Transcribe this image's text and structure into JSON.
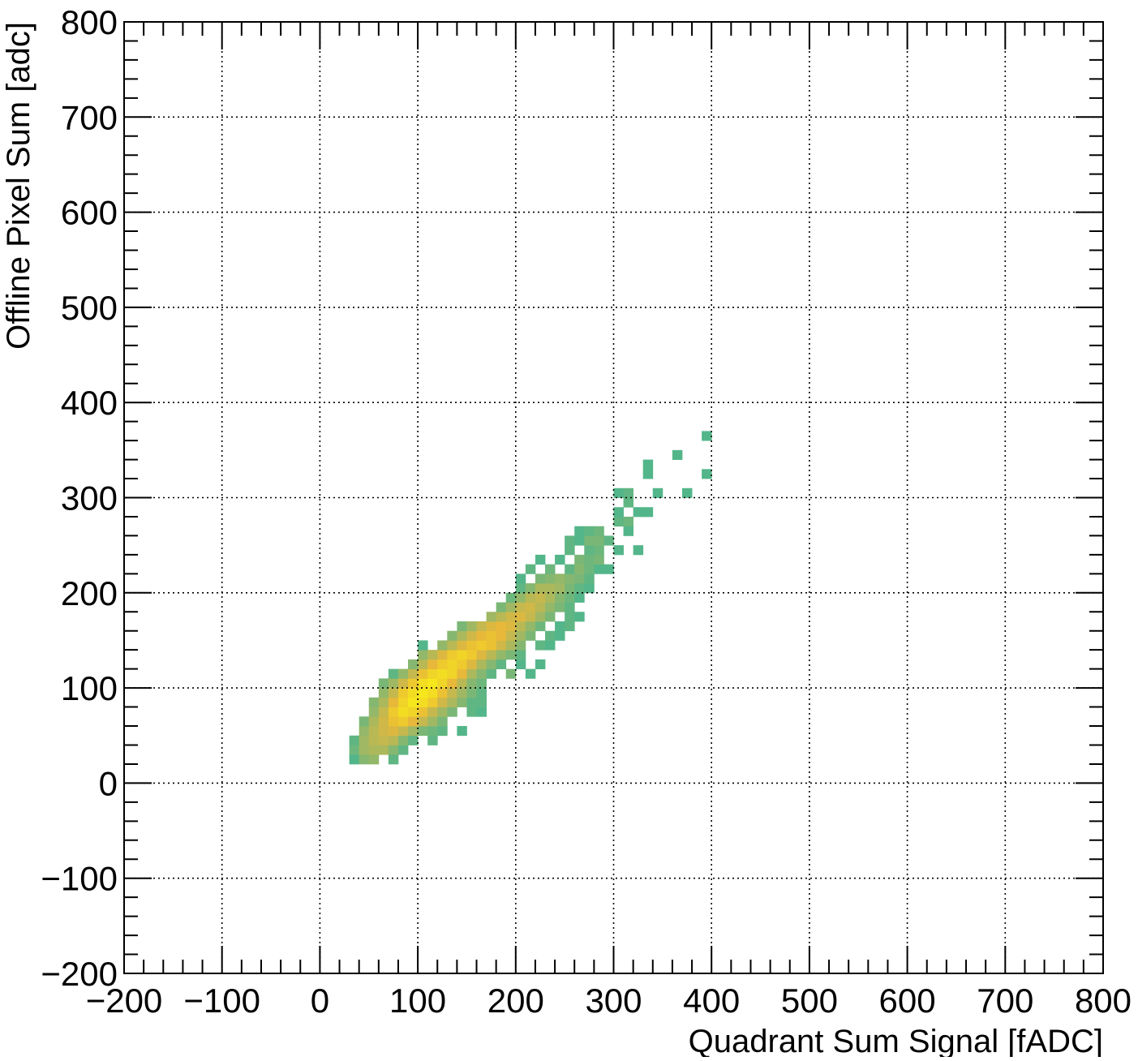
{
  "chart_data": {
    "type": "heatmap",
    "title": "",
    "xlabel": "Quadrant Sum Signal [fADC]",
    "ylabel": "Offline Pixel Sum [adc]",
    "xlim": [
      -200,
      800
    ],
    "ylim": [
      -200,
      800
    ],
    "grid": true,
    "x_tick_labels": [
      "−200",
      "−100",
      "0",
      "100",
      "200",
      "300",
      "400",
      "500",
      "600",
      "700",
      "800"
    ],
    "y_tick_labels": [
      "−200",
      "−100",
      "0",
      "100",
      "200",
      "300",
      "400",
      "500",
      "600",
      "700",
      "800"
    ],
    "colors": {
      "low": "#2db59d",
      "mid": "#a0b863",
      "high": "#e8b83a",
      "peak": "#f6e61c",
      "grid": "#000000"
    },
    "cells": [
      [
        35,
        25,
        0.15
      ],
      [
        45,
        25,
        0.35
      ],
      [
        55,
        25,
        0.4
      ],
      [
        75,
        25,
        0.2
      ],
      [
        35,
        35,
        0.25
      ],
      [
        45,
        35,
        0.45
      ],
      [
        55,
        35,
        0.5
      ],
      [
        65,
        35,
        0.5
      ],
      [
        75,
        35,
        0.35
      ],
      [
        85,
        35,
        0.2
      ],
      [
        35,
        45,
        0.2
      ],
      [
        45,
        45,
        0.45
      ],
      [
        55,
        45,
        0.55
      ],
      [
        65,
        45,
        0.6
      ],
      [
        75,
        45,
        0.55
      ],
      [
        85,
        45,
        0.35
      ],
      [
        95,
        45,
        0.2
      ],
      [
        115,
        45,
        0.2
      ],
      [
        45,
        55,
        0.4
      ],
      [
        55,
        55,
        0.55
      ],
      [
        65,
        55,
        0.65
      ],
      [
        75,
        55,
        0.7
      ],
      [
        85,
        55,
        0.6
      ],
      [
        95,
        55,
        0.45
      ],
      [
        105,
        55,
        0.3
      ],
      [
        115,
        55,
        0.25
      ],
      [
        125,
        55,
        0.2
      ],
      [
        145,
        55,
        0.15
      ],
      [
        45,
        65,
        0.3
      ],
      [
        55,
        65,
        0.5
      ],
      [
        65,
        65,
        0.65
      ],
      [
        75,
        65,
        0.8
      ],
      [
        85,
        65,
        0.85
      ],
      [
        95,
        65,
        0.75
      ],
      [
        105,
        65,
        0.6
      ],
      [
        115,
        65,
        0.45
      ],
      [
        125,
        65,
        0.3
      ],
      [
        55,
        75,
        0.4
      ],
      [
        65,
        75,
        0.6
      ],
      [
        75,
        75,
        0.85
      ],
      [
        85,
        75,
        0.95
      ],
      [
        95,
        75,
        0.9
      ],
      [
        105,
        75,
        0.8
      ],
      [
        115,
        75,
        0.6
      ],
      [
        125,
        75,
        0.45
      ],
      [
        135,
        75,
        0.3
      ],
      [
        155,
        75,
        0.2
      ],
      [
        165,
        75,
        0.15
      ],
      [
        55,
        85,
        0.35
      ],
      [
        65,
        85,
        0.5
      ],
      [
        75,
        85,
        0.75
      ],
      [
        85,
        85,
        0.9
      ],
      [
        95,
        85,
        1.0
      ],
      [
        105,
        85,
        0.95
      ],
      [
        115,
        85,
        0.85
      ],
      [
        125,
        85,
        0.65
      ],
      [
        135,
        85,
        0.5
      ],
      [
        145,
        85,
        0.35
      ],
      [
        155,
        85,
        0.2
      ],
      [
        165,
        85,
        0.2
      ],
      [
        65,
        95,
        0.4
      ],
      [
        75,
        95,
        0.6
      ],
      [
        85,
        95,
        0.85
      ],
      [
        95,
        95,
        0.95
      ],
      [
        105,
        95,
        1.0
      ],
      [
        115,
        95,
        0.95
      ],
      [
        125,
        95,
        0.8
      ],
      [
        135,
        95,
        0.6
      ],
      [
        145,
        95,
        0.45
      ],
      [
        155,
        95,
        0.3
      ],
      [
        165,
        95,
        0.2
      ],
      [
        65,
        105,
        0.3
      ],
      [
        75,
        105,
        0.45
      ],
      [
        85,
        105,
        0.65
      ],
      [
        95,
        105,
        0.85
      ],
      [
        105,
        105,
        0.95
      ],
      [
        115,
        105,
        1.0
      ],
      [
        125,
        105,
        0.9
      ],
      [
        135,
        105,
        0.75
      ],
      [
        145,
        105,
        0.55
      ],
      [
        155,
        105,
        0.35
      ],
      [
        165,
        105,
        0.25
      ],
      [
        75,
        115,
        0.2
      ],
      [
        85,
        115,
        0.4
      ],
      [
        95,
        115,
        0.6
      ],
      [
        105,
        115,
        0.8
      ],
      [
        115,
        115,
        0.9
      ],
      [
        125,
        115,
        0.95
      ],
      [
        135,
        115,
        0.9
      ],
      [
        145,
        115,
        0.75
      ],
      [
        155,
        115,
        0.5
      ],
      [
        165,
        115,
        0.35
      ],
      [
        175,
        115,
        0.2
      ],
      [
        195,
        115,
        0.3
      ],
      [
        215,
        115,
        0.15
      ],
      [
        95,
        125,
        0.35
      ],
      [
        105,
        125,
        0.55
      ],
      [
        115,
        125,
        0.75
      ],
      [
        125,
        125,
        0.85
      ],
      [
        135,
        125,
        0.9
      ],
      [
        145,
        125,
        0.85
      ],
      [
        155,
        125,
        0.7
      ],
      [
        165,
        125,
        0.5
      ],
      [
        175,
        125,
        0.35
      ],
      [
        185,
        125,
        0.2
      ],
      [
        205,
        125,
        0.15
      ],
      [
        225,
        125,
        0.15
      ],
      [
        105,
        135,
        0.4
      ],
      [
        115,
        135,
        0.55
      ],
      [
        125,
        135,
        0.7
      ],
      [
        135,
        135,
        0.85
      ],
      [
        145,
        135,
        0.9
      ],
      [
        155,
        135,
        0.85
      ],
      [
        165,
        135,
        0.7
      ],
      [
        175,
        135,
        0.55
      ],
      [
        185,
        135,
        0.4
      ],
      [
        195,
        135,
        0.3
      ],
      [
        205,
        135,
        0.2
      ],
      [
        125,
        145,
        0.4
      ],
      [
        135,
        145,
        0.55
      ],
      [
        145,
        145,
        0.7
      ],
      [
        155,
        145,
        0.8
      ],
      [
        165,
        145,
        0.85
      ],
      [
        175,
        145,
        0.8
      ],
      [
        185,
        145,
        0.65
      ],
      [
        195,
        145,
        0.5
      ],
      [
        205,
        145,
        0.35
      ],
      [
        225,
        145,
        0.2
      ],
      [
        235,
        145,
        0.15
      ],
      [
        105,
        145,
        0.15
      ],
      [
        135,
        155,
        0.35
      ],
      [
        145,
        155,
        0.5
      ],
      [
        155,
        155,
        0.65
      ],
      [
        165,
        155,
        0.75
      ],
      [
        175,
        155,
        0.8
      ],
      [
        185,
        155,
        0.75
      ],
      [
        195,
        155,
        0.6
      ],
      [
        205,
        155,
        0.45
      ],
      [
        215,
        155,
        0.3
      ],
      [
        235,
        155,
        0.2
      ],
      [
        245,
        155,
        0.15
      ],
      [
        145,
        165,
        0.3
      ],
      [
        155,
        165,
        0.45
      ],
      [
        165,
        165,
        0.6
      ],
      [
        175,
        165,
        0.7
      ],
      [
        185,
        165,
        0.75
      ],
      [
        195,
        165,
        0.7
      ],
      [
        205,
        165,
        0.55
      ],
      [
        215,
        165,
        0.4
      ],
      [
        225,
        165,
        0.25
      ],
      [
        245,
        165,
        0.15
      ],
      [
        255,
        165,
        0.2
      ],
      [
        175,
        175,
        0.45
      ],
      [
        185,
        175,
        0.55
      ],
      [
        195,
        175,
        0.65
      ],
      [
        205,
        175,
        0.7
      ],
      [
        215,
        175,
        0.6
      ],
      [
        225,
        175,
        0.45
      ],
      [
        235,
        175,
        0.3
      ],
      [
        255,
        175,
        0.2
      ],
      [
        265,
        175,
        0.15
      ],
      [
        185,
        185,
        0.3
      ],
      [
        195,
        185,
        0.45
      ],
      [
        205,
        185,
        0.6
      ],
      [
        215,
        185,
        0.65
      ],
      [
        225,
        185,
        0.55
      ],
      [
        235,
        185,
        0.4
      ],
      [
        245,
        185,
        0.3
      ],
      [
        255,
        185,
        0.2
      ],
      [
        195,
        195,
        0.25
      ],
      [
        205,
        195,
        0.4
      ],
      [
        215,
        195,
        0.55
      ],
      [
        225,
        195,
        0.6
      ],
      [
        235,
        195,
        0.5
      ],
      [
        245,
        195,
        0.35
      ],
      [
        255,
        195,
        0.25
      ],
      [
        265,
        195,
        0.15
      ],
      [
        205,
        205,
        0.2
      ],
      [
        215,
        205,
        0.35
      ],
      [
        225,
        205,
        0.5
      ],
      [
        235,
        205,
        0.5
      ],
      [
        245,
        205,
        0.45
      ],
      [
        255,
        205,
        0.3
      ],
      [
        265,
        205,
        0.2
      ],
      [
        275,
        205,
        0.15
      ],
      [
        205,
        215,
        0.15
      ],
      [
        225,
        215,
        0.3
      ],
      [
        235,
        215,
        0.35
      ],
      [
        245,
        215,
        0.4
      ],
      [
        255,
        215,
        0.35
      ],
      [
        265,
        215,
        0.3
      ],
      [
        275,
        215,
        0.2
      ],
      [
        215,
        225,
        0.2
      ],
      [
        235,
        225,
        0.25
      ],
      [
        255,
        225,
        0.2
      ],
      [
        265,
        225,
        0.35
      ],
      [
        275,
        225,
        0.25
      ],
      [
        285,
        225,
        0.15
      ],
      [
        295,
        225,
        0.15
      ],
      [
        225,
        235,
        0.15
      ],
      [
        245,
        235,
        0.15
      ],
      [
        265,
        235,
        0.3
      ],
      [
        275,
        235,
        0.25
      ],
      [
        285,
        235,
        0.3
      ],
      [
        255,
        245,
        0.2
      ],
      [
        275,
        245,
        0.2
      ],
      [
        285,
        245,
        0.25
      ],
      [
        305,
        245,
        0.15
      ],
      [
        255,
        255,
        0.2
      ],
      [
        265,
        255,
        0.15
      ],
      [
        275,
        255,
        0.3
      ],
      [
        285,
        255,
        0.3
      ],
      [
        295,
        255,
        0.2
      ],
      [
        325,
        245,
        0.15
      ],
      [
        265,
        265,
        0.15
      ],
      [
        275,
        265,
        0.2
      ],
      [
        285,
        265,
        0.25
      ],
      [
        315,
        265,
        0.15
      ],
      [
        305,
        275,
        0.2
      ],
      [
        315,
        275,
        0.25
      ],
      [
        305,
        285,
        0.15
      ],
      [
        325,
        285,
        0.15
      ],
      [
        315,
        295,
        0.2
      ],
      [
        335,
        285,
        0.15
      ],
      [
        305,
        305,
        0.15
      ],
      [
        315,
        305,
        0.2
      ],
      [
        345,
        305,
        0.15
      ],
      [
        375,
        305,
        0.15
      ],
      [
        335,
        325,
        0.15
      ],
      [
        395,
        325,
        0.15
      ],
      [
        335,
        335,
        0.15
      ],
      [
        365,
        345,
        0.15
      ],
      [
        395,
        365,
        0.15
      ]
    ]
  }
}
